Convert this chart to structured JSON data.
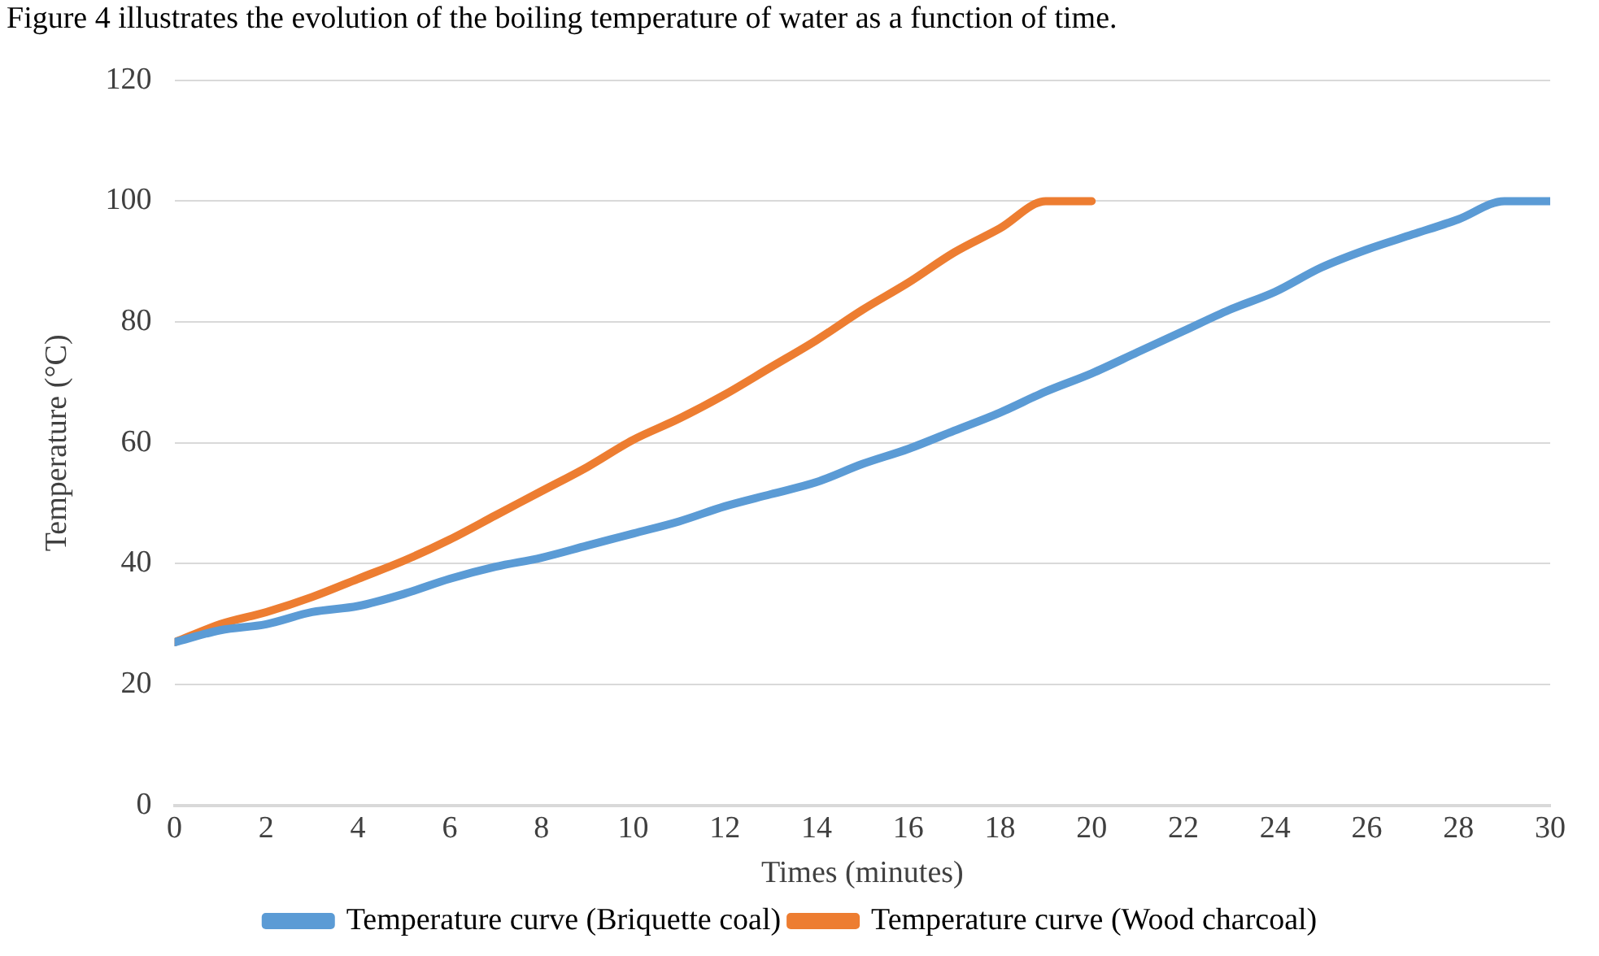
{
  "chart_data": {
    "type": "line",
    "annotations": [
      "Figure 4 illustrates the evolution of the boiling temperature of water as a function of time."
    ],
    "xlabel": "Times (minutes)",
    "ylabel": "Temperature (°C)",
    "xlim": [
      0,
      30
    ],
    "xticks": [
      0,
      2,
      4,
      6,
      8,
      10,
      12,
      14,
      16,
      18,
      20,
      22,
      24,
      26,
      28,
      30
    ],
    "ylim": [
      0,
      120
    ],
    "yticks": [
      0,
      20,
      40,
      60,
      80,
      100,
      120
    ],
    "grid": "y",
    "legend": "bottom",
    "marker": "none",
    "line_style": "solid",
    "series": [
      {
        "name": "Temperature curve (Briquette coal)",
        "color": "#5b9bd5",
        "x": [
          0,
          1,
          2,
          3,
          4,
          5,
          6,
          7,
          8,
          9,
          10,
          11,
          12,
          13,
          14,
          15,
          16,
          17,
          18,
          19,
          20,
          21,
          22,
          23,
          24,
          25,
          26,
          27,
          28,
          29,
          30
        ],
        "values": [
          27,
          29,
          30,
          32,
          33,
          35,
          37.5,
          39.5,
          41,
          43,
          45,
          47,
          49.5,
          51.5,
          53.5,
          56.5,
          59,
          62,
          65,
          68.5,
          71.5,
          75,
          78.5,
          82,
          85,
          89,
          92,
          94.5,
          97,
          100,
          100
        ]
      },
      {
        "name": "Temperature curve (Wood charcoal)",
        "color": "#ed7d31",
        "x": [
          0,
          1,
          2,
          3,
          4,
          5,
          6,
          7,
          8,
          9,
          10,
          11,
          12,
          13,
          14,
          15,
          16,
          17,
          18,
          19,
          20
        ],
        "values": [
          27,
          30,
          32,
          34.5,
          37.5,
          40.5,
          44,
          48,
          52,
          56,
          60.5,
          64,
          68,
          72.5,
          77,
          82,
          86.5,
          91.5,
          95.5,
          100,
          100
        ]
      }
    ]
  }
}
